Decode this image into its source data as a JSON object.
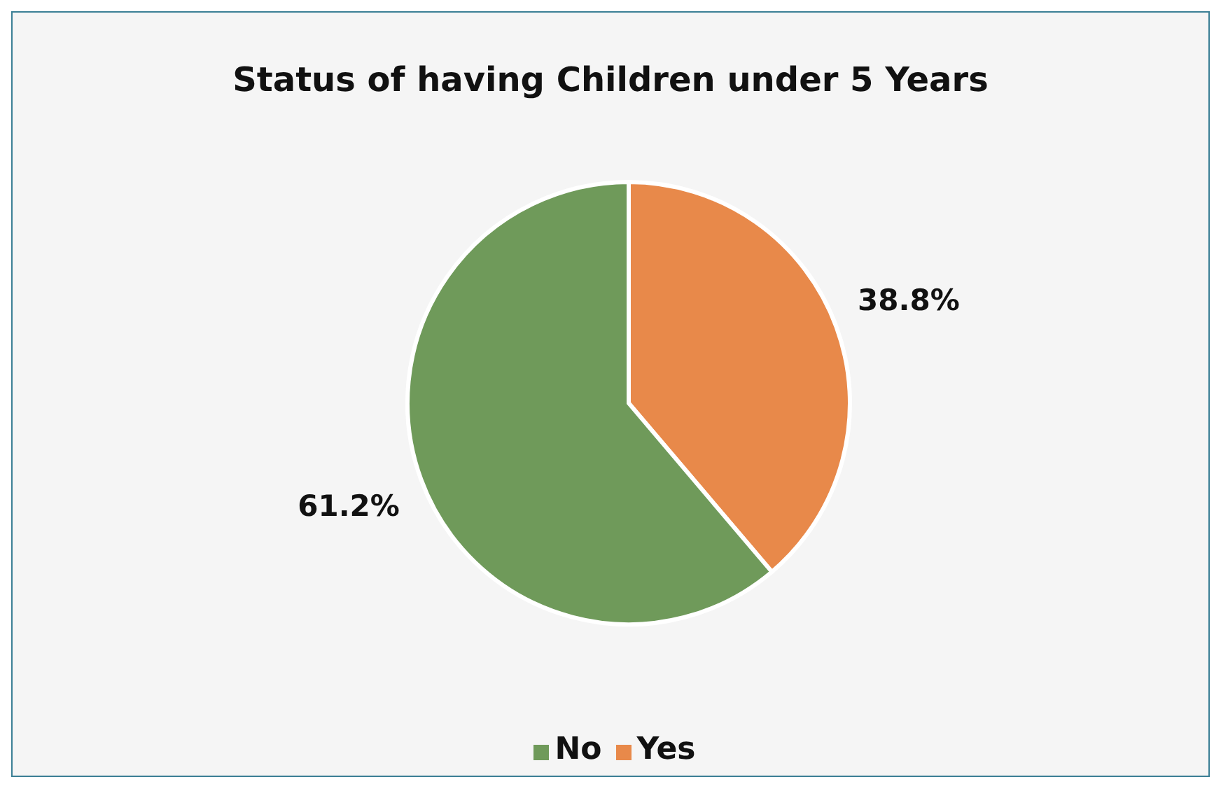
{
  "chart_data": {
    "type": "pie",
    "title": "Status of having Children under 5 Years",
    "categories": [
      "Yes",
      "No"
    ],
    "values": [
      38.8,
      61.2
    ],
    "colors": [
      "#e8894a",
      "#6f9a5a"
    ],
    "value_labels": [
      "38.8%",
      "61.2%"
    ],
    "legend": "bottom"
  }
}
